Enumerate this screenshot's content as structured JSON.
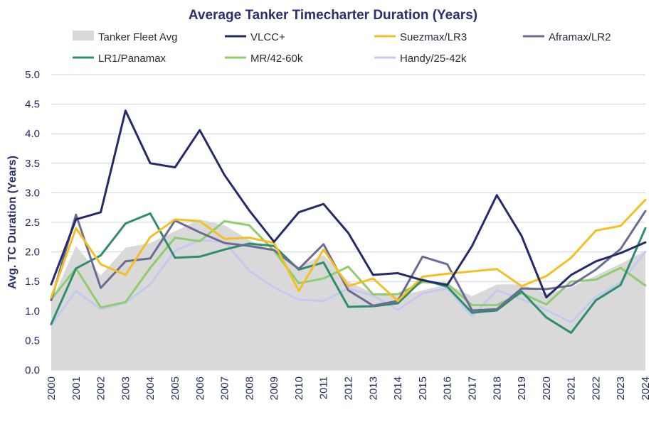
{
  "chart_data": {
    "type": "line",
    "title": "Average Tanker Timecharter Duration (Years)",
    "xlabel": "",
    "ylabel": "Avg. TC Duration (Years)",
    "ylim": [
      0,
      5
    ],
    "yticks": [
      "0.0",
      "0.5",
      "1.0",
      "1.5",
      "2.0",
      "2.5",
      "3.0",
      "3.5",
      "4.0",
      "4.5",
      "5.0"
    ],
    "grid": true,
    "legend": "top",
    "x": [
      "2000",
      "2001",
      "2002",
      "2003",
      "2004",
      "2005",
      "2006",
      "2007",
      "2008",
      "2009",
      "2010",
      "2011",
      "2012",
      "2013",
      "2014",
      "2015",
      "2016",
      "2017",
      "2018",
      "2019",
      "2020",
      "2021",
      "2022",
      "2023",
      "2024"
    ],
    "area": {
      "name": "Tanker Fleet Avg",
      "color": "#d9d9d9",
      "values": [
        1.15,
        2.1,
        1.6,
        2.07,
        2.15,
        2.35,
        2.55,
        2.45,
        2.2,
        2.0,
        1.75,
        1.95,
        1.5,
        1.3,
        1.25,
        1.35,
        1.45,
        1.25,
        1.45,
        1.45,
        1.3,
        1.4,
        1.6,
        1.8,
        2.02
      ]
    },
    "series": [
      {
        "name": "VLCC+",
        "color": "#262a6b",
        "values": [
          1.45,
          2.55,
          2.67,
          4.39,
          3.5,
          3.43,
          4.06,
          3.3,
          2.7,
          2.17,
          2.67,
          2.81,
          2.32,
          1.61,
          1.64,
          1.52,
          1.44,
          2.1,
          2.96,
          2.27,
          1.23,
          1.61,
          1.84,
          1.98,
          2.16
        ]
      },
      {
        "name": "Suezmax/LR3",
        "color": "#f5bf24",
        "values": [
          1.23,
          2.4,
          1.79,
          1.61,
          2.25,
          2.55,
          2.52,
          2.22,
          2.24,
          2.15,
          1.34,
          2.04,
          1.42,
          1.55,
          1.17,
          1.58,
          1.63,
          1.67,
          1.71,
          1.42,
          1.59,
          1.9,
          2.36,
          2.44,
          2.88
        ]
      },
      {
        "name": "Aframax/LR2",
        "color": "#6a6c96",
        "values": [
          1.18,
          2.63,
          1.39,
          1.84,
          1.89,
          2.53,
          2.33,
          2.15,
          2.1,
          2.03,
          1.71,
          2.13,
          1.35,
          1.09,
          1.17,
          1.92,
          1.79,
          1.01,
          1.03,
          1.38,
          1.37,
          1.43,
          1.7,
          2.05,
          2.69
        ]
      },
      {
        "name": "LR1/Panamax",
        "color": "#2e8d6b",
        "values": [
          0.78,
          1.72,
          1.94,
          2.48,
          2.65,
          1.9,
          1.92,
          2.04,
          2.14,
          2.1,
          1.7,
          1.82,
          1.07,
          1.08,
          1.13,
          1.53,
          1.41,
          0.97,
          1.01,
          1.33,
          0.89,
          0.63,
          1.18,
          1.44,
          2.4
        ]
      },
      {
        "name": "MR/42-60k",
        "color": "#8fcc6e",
        "values": [
          1.2,
          1.72,
          1.06,
          1.15,
          1.73,
          2.24,
          2.18,
          2.52,
          2.45,
          2.02,
          1.47,
          1.55,
          1.75,
          1.28,
          1.28,
          1.49,
          1.46,
          1.1,
          1.1,
          1.3,
          1.11,
          1.5,
          1.53,
          1.73,
          1.43
        ]
      },
      {
        "name": "Handy/25-42k",
        "color": "#c5c9ef",
        "values": [
          0.76,
          1.34,
          1.03,
          1.14,
          1.45,
          2.02,
          2.2,
          2.17,
          1.68,
          1.4,
          1.19,
          1.17,
          1.38,
          1.26,
          1.02,
          1.3,
          1.38,
          0.91,
          1.35,
          1.2,
          1.02,
          0.81,
          1.24,
          1.48,
          2.0
        ]
      }
    ]
  }
}
